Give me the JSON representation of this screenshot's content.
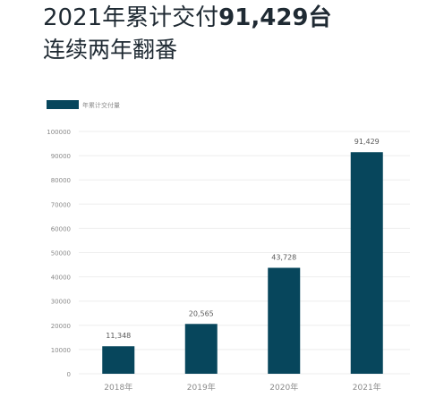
{
  "headline": {
    "line1_prefix": "2021年累计交付",
    "line1_number": "91,429台",
    "line2": "连续两年翻番"
  },
  "colors": {
    "bar": "#07465c",
    "grid": "#eeeeee",
    "axis_text": "#8a8a8a",
    "label_text": "#5a5a5a"
  },
  "chart_data": {
    "type": "bar",
    "categories": [
      "2018年",
      "2019年",
      "2020年",
      "2021年"
    ],
    "series": [
      {
        "name": "年累计交付量",
        "values": [
          11348,
          20565,
          43728,
          91429
        ]
      }
    ],
    "data_labels": [
      "11,348",
      "20,565",
      "43,728",
      "91,429"
    ],
    "y_ticks": [
      "0",
      "10000",
      "20000",
      "30000",
      "40000",
      "50000",
      "60000",
      "70000",
      "80000",
      "90000",
      "100000"
    ],
    "ylim": [
      0,
      100000
    ],
    "grid": true,
    "legend": "top-left"
  }
}
